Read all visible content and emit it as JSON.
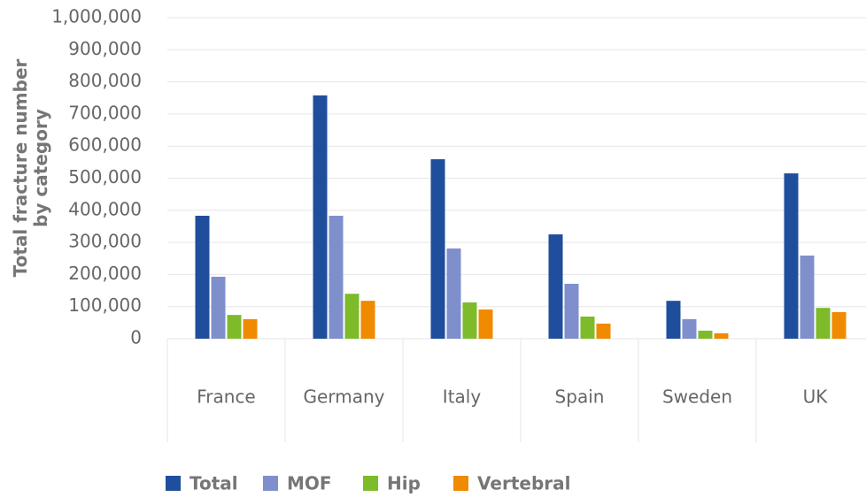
{
  "chart_data": {
    "type": "bar",
    "y_label": "Total fracture number by category",
    "categories": [
      "France",
      "Germany",
      "Italy",
      "Spain",
      "Sweden",
      "UK"
    ],
    "series": [
      {
        "name": "Total",
        "color": "#1f4e9c",
        "values": [
          383000,
          758000,
          559000,
          325000,
          118000,
          515000
        ]
      },
      {
        "name": "MOF",
        "color": "#7f8fcc",
        "values": [
          193000,
          383000,
          281000,
          171000,
          61000,
          259000
        ]
      },
      {
        "name": "Hip",
        "color": "#7dbb2a",
        "values": [
          74000,
          140000,
          113000,
          69000,
          25000,
          96000
        ]
      },
      {
        "name": "Vertebral",
        "color": "#f08a00",
        "values": [
          61000,
          118000,
          91000,
          47000,
          17000,
          83000
        ]
      }
    ],
    "ylim": [
      0,
      1000000
    ],
    "yticks": [
      0,
      {
        "value": 100000,
        "label": "100,000"
      },
      {
        "value": 200000,
        "label": "200,000"
      },
      {
        "value": 300000,
        "label": "300,000"
      },
      {
        "value": 400000,
        "label": "400,000"
      },
      {
        "value": 500000,
        "label": "500,000"
      },
      {
        "value": 600000,
        "label": "600,000"
      },
      {
        "value": 700000,
        "label": "700,000"
      },
      {
        "value": 800000,
        "label": "800,000"
      },
      {
        "value": 900000,
        "label": "900,000"
      },
      {
        "value": 1000000,
        "label": "1,000,000"
      }
    ],
    "grid": true,
    "legend": "bottom"
  }
}
